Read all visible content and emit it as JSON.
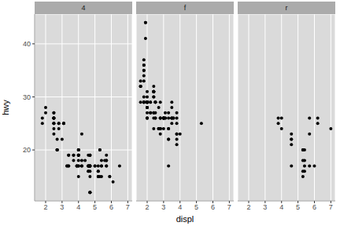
{
  "chart_data": {
    "type": "scatter",
    "x_label": "displ",
    "y_label": "hwy",
    "color": "#000000",
    "marker": "circle",
    "grid": true,
    "xlim": [
      1.33,
      7.27
    ],
    "xticks": [
      2,
      3,
      4,
      5,
      6,
      7
    ],
    "ylim": [
      10.4,
      45.6
    ],
    "yticks": [
      20,
      30,
      40
    ],
    "facets": [
      {
        "title": "4",
        "x": [
          1.8,
          1.8,
          2.0,
          2.0,
          2.8,
          2.8,
          3.1,
          3.1,
          2.8,
          3.1,
          4.2,
          5.3,
          5.3,
          5.3,
          5.7,
          6.5,
          3.7,
          3.7,
          3.9,
          3.9,
          4.7,
          4.7,
          4.7,
          5.2,
          5.2,
          3.9,
          4.7,
          4.7,
          4.7,
          5.2,
          5.7,
          5.9,
          4.7,
          4.7,
          4.7,
          4.7,
          5.2,
          5.2,
          5.7,
          5.9,
          4.6,
          5.4,
          5.4,
          4.0,
          4.0,
          4.0,
          4.0,
          4.6,
          5.0,
          4.2,
          4.2,
          4.6,
          4.6,
          4.6,
          5.4,
          5.4,
          3.0,
          3.7,
          4.0,
          4.7,
          4.7,
          4.7,
          5.7,
          6.1,
          4.0,
          4.2,
          4.4,
          4.6,
          4.0,
          4.0,
          4.6,
          5.0,
          3.3,
          3.3,
          4.0,
          5.6,
          2.5,
          2.5,
          2.5,
          2.5,
          2.5,
          2.5,
          2.5,
          2.5,
          2.5,
          2.5,
          2.5,
          2.5,
          2.7,
          2.7,
          3.4,
          3.4,
          4.0,
          4.7,
          4.7,
          5.7,
          2.7,
          2.7,
          2.7,
          3.4,
          3.4,
          4.0,
          4.0
        ],
        "values": [
          26,
          25,
          28,
          27,
          25,
          25,
          25,
          25,
          24,
          25,
          23,
          20,
          15,
          20,
          17,
          17,
          19,
          18,
          17,
          17,
          19,
          19,
          12,
          17,
          15,
          17,
          17,
          12,
          17,
          16,
          18,
          15,
          16,
          12,
          17,
          17,
          16,
          15,
          17,
          15,
          17,
          17,
          18,
          17,
          19,
          17,
          19,
          19,
          17,
          17,
          17,
          16,
          16,
          17,
          15,
          17,
          22,
          19,
          20,
          17,
          12,
          19,
          19,
          14,
          15,
          18,
          18,
          17,
          19,
          19,
          17,
          17,
          17,
          17,
          20,
          18,
          25,
          24,
          27,
          25,
          26,
          23,
          26,
          26,
          26,
          26,
          25,
          27,
          20,
          20,
          19,
          17,
          20,
          17,
          15,
          18,
          20,
          20,
          22,
          17,
          19,
          18,
          20
        ]
      },
      {
        "title": "f",
        "x": [
          1.8,
          1.8,
          2.0,
          2.0,
          2.8,
          2.8,
          3.1,
          2.4,
          2.4,
          3.1,
          3.5,
          3.6,
          2.4,
          3.0,
          3.3,
          3.3,
          3.3,
          3.3,
          3.3,
          3.8,
          3.8,
          3.8,
          3.8,
          4.0,
          1.6,
          1.6,
          1.6,
          1.6,
          1.6,
          1.8,
          1.8,
          1.8,
          2.0,
          2.4,
          2.4,
          2.4,
          2.4,
          2.5,
          2.5,
          2.7,
          3.3,
          2.0,
          2.0,
          2.0,
          2.7,
          2.7,
          2.7,
          2.4,
          2.4,
          2.5,
          3.5,
          3.5,
          3.5,
          3.0,
          3.0,
          3.5,
          3.1,
          3.8,
          3.8,
          3.8,
          5.3,
          2.2,
          2.2,
          2.4,
          2.4,
          3.0,
          3.0,
          3.5,
          2.2,
          2.2,
          2.4,
          2.4,
          3.0,
          3.0,
          3.3,
          1.8,
          1.8,
          1.8,
          1.8,
          1.8,
          2.0,
          2.0,
          2.0,
          2.0,
          2.8,
          2.8,
          1.9,
          2.0,
          2.0,
          2.0,
          2.0,
          2.5,
          2.5,
          2.8,
          2.8,
          1.9,
          1.9,
          2.0,
          2.0,
          2.0,
          2.0,
          2.5,
          2.5,
          1.8,
          1.8,
          1.8,
          2.0,
          2.0,
          2.8,
          2.8,
          3.6
        ],
        "values": [
          29,
          29,
          31,
          30,
          26,
          26,
          27,
          27,
          30,
          26,
          29,
          26,
          24,
          24,
          22,
          22,
          24,
          24,
          17,
          22,
          21,
          23,
          23,
          23,
          33,
          32,
          32,
          29,
          32,
          34,
          36,
          36,
          29,
          26,
          27,
          30,
          31,
          26,
          26,
          28,
          26,
          29,
          28,
          27,
          24,
          24,
          24,
          31,
          32,
          27,
          26,
          26,
          25,
          26,
          26,
          26,
          26,
          27,
          26,
          25,
          25,
          29,
          27,
          31,
          31,
          26,
          26,
          28,
          27,
          29,
          31,
          31,
          26,
          26,
          27,
          30,
          33,
          35,
          37,
          35,
          29,
          26,
          29,
          29,
          24,
          24,
          44,
          29,
          26,
          29,
          29,
          29,
          29,
          23,
          24,
          44,
          41,
          29,
          26,
          28,
          29,
          29,
          29,
          29,
          29,
          29,
          29,
          28,
          29,
          26,
          26
        ]
      },
      {
        "title": "r",
        "x": [
          3.8,
          3.8,
          4.0,
          4.0,
          4.6,
          4.6,
          4.6,
          4.6,
          5.4,
          4.6,
          5.3,
          5.3,
          5.3,
          5.7,
          6.0,
          5.7,
          5.7,
          6.2,
          6.2,
          7.0,
          5.4,
          5.4,
          5.4,
          5.3,
          5.3
        ],
        "values": [
          26,
          25,
          26,
          24,
          21,
          22,
          23,
          22,
          20,
          17,
          20,
          15,
          20,
          17,
          17,
          26,
          23,
          26,
          25,
          24,
          17,
          16,
          18,
          16,
          18
        ]
      }
    ]
  }
}
